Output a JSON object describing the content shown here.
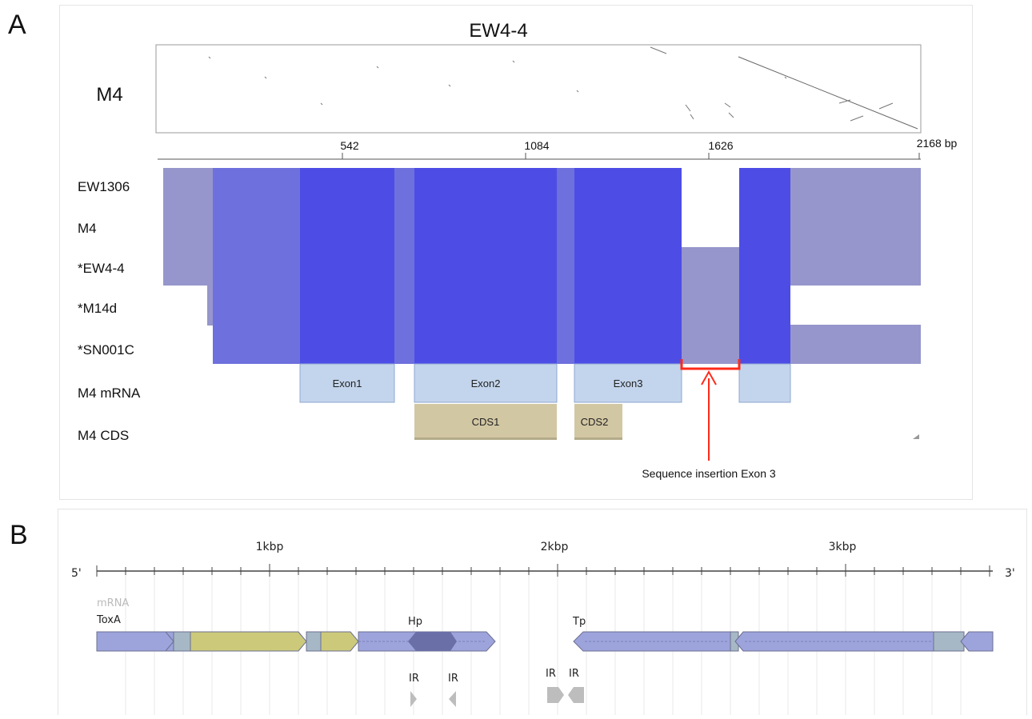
{
  "panel_a": {
    "letter": "A",
    "dotplot": {
      "title": "EW4-4",
      "ylabel": "M4",
      "ticks": [
        "542",
        "1084",
        "1626",
        "2168 bp"
      ]
    },
    "tracks": [
      "EW1306",
      "M4",
      "*EW4-4",
      "*M14d",
      "*SN001C",
      "M4 mRNA",
      "M4 CDS"
    ],
    "exons": [
      "Exon1",
      "Exon2",
      "Exon3"
    ],
    "cds": [
      "CDS1",
      "CDS2"
    ],
    "annotation": "Sequence insertion Exon 3",
    "colors": {
      "strong": "#4d4de6",
      "medium": "#6e70dd",
      "light": "#9696cc",
      "exon": "#c3d5ec",
      "cds": "#d2c7a3",
      "insertion": "#ff2a1a"
    }
  },
  "panel_b": {
    "letter": "B",
    "ruler": {
      "left_end": "5'",
      "right_end": "3'",
      "ticks": [
        "1kbp",
        "2kbp",
        "3kbp"
      ]
    },
    "labels": {
      "mrna": "mRNA",
      "toxa": "ToxA",
      "hp": "Hp",
      "tp": "Tp",
      "ir1": "IR",
      "ir2": "IR",
      "ir3": "IR",
      "ir4": "IR"
    },
    "colors": {
      "gene": "#9da4dc",
      "yellow": "#ccc97b",
      "hp": "#6a6fa7",
      "spacer": "#a6b8c5",
      "ir": "#bdbdbd"
    }
  }
}
